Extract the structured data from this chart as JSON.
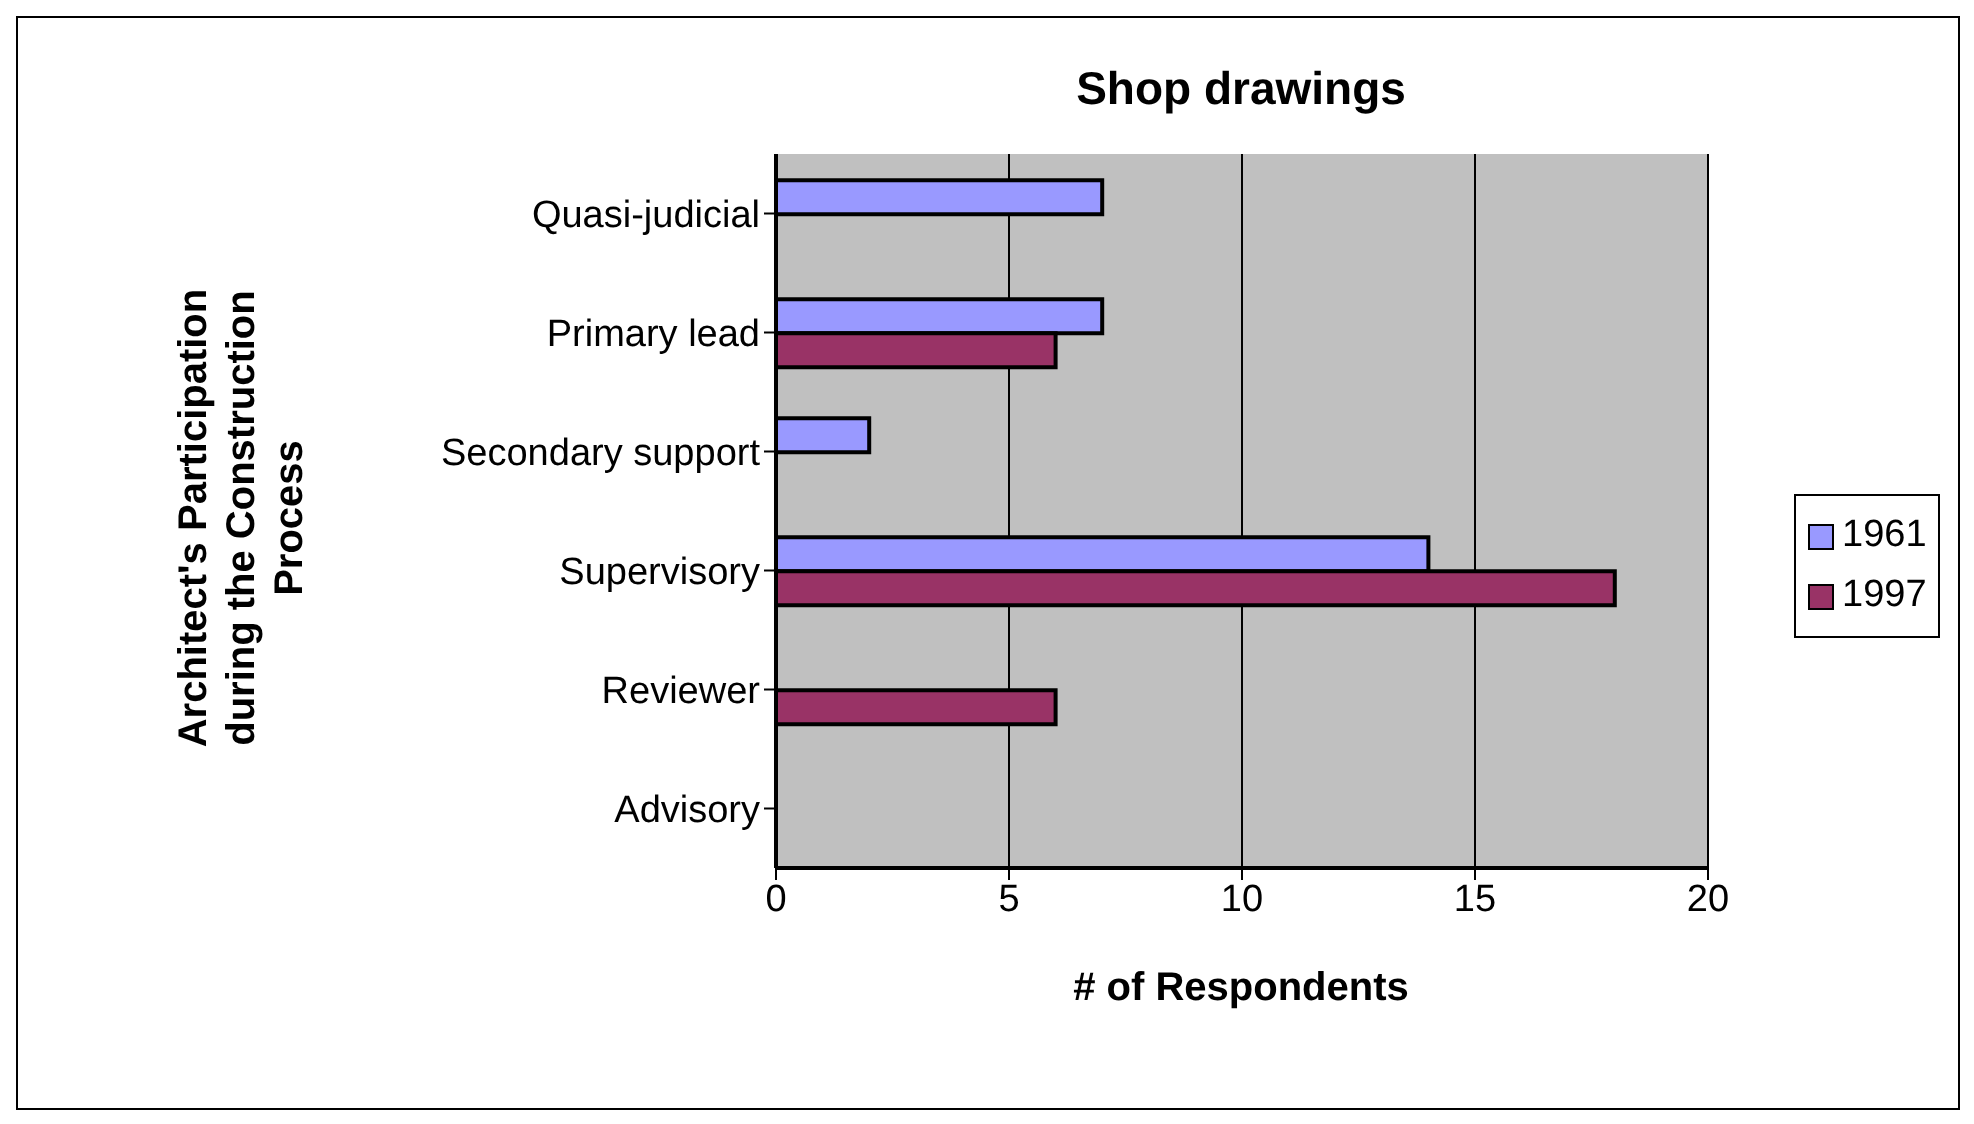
{
  "chart_data": {
    "type": "bar",
    "orientation": "horizontal",
    "title": "Shop drawings",
    "xlabel": "# of Respondents",
    "ylabel": "Architect's Participation during the Construction Process",
    "categories": [
      "Quasi-judicial",
      "Primary lead",
      "Secondary support",
      "Supervisory",
      "Reviewer",
      "Advisory"
    ],
    "series": [
      {
        "name": "1961",
        "color": "#9999ff",
        "values": [
          7,
          7,
          2,
          14,
          null,
          null
        ]
      },
      {
        "name": "1997",
        "color": "#993366",
        "values": [
          null,
          6,
          null,
          18,
          6,
          null
        ]
      }
    ],
    "xlim": [
      0,
      20
    ],
    "xticks": [
      0,
      5,
      10,
      15,
      20
    ],
    "grid": "x",
    "legend": "right"
  }
}
